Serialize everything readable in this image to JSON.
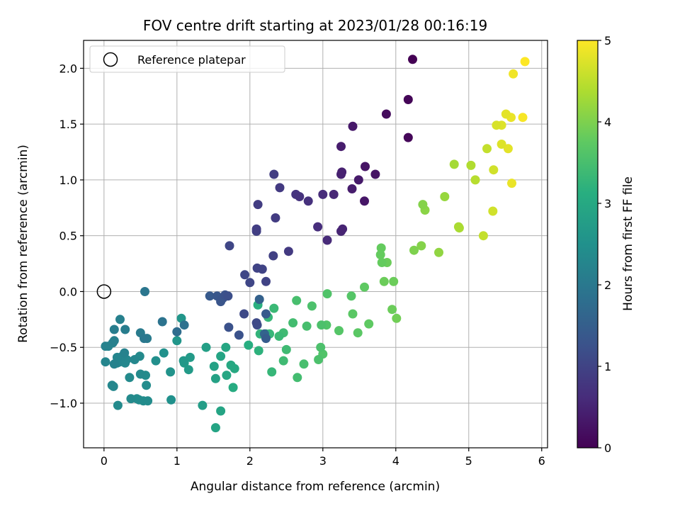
{
  "chart_data": {
    "type": "scatter",
    "title": "FOV centre drift starting at 2023/01/28 00:16:19",
    "xlabel": "Angular distance from reference (arcmin)",
    "ylabel": "Rotation from reference (arcmin)",
    "colorbar_label": "Hours from first FF file",
    "colormap": "viridis",
    "xlim": [
      -0.28,
      6.08
    ],
    "ylim": [
      -1.4,
      2.25
    ],
    "clim": [
      0,
      5
    ],
    "xticks": [
      0,
      1,
      2,
      3,
      4,
      5,
      6
    ],
    "yticks": [
      -1.0,
      -0.5,
      0.0,
      0.5,
      1.0,
      1.5,
      2.0
    ],
    "ytick_labels": [
      "−1.0",
      "−0.5",
      "0.0",
      "0.5",
      "1.0",
      "1.5",
      "2.0"
    ],
    "cticks": [
      0,
      1,
      2,
      3,
      4,
      5
    ],
    "grid": true,
    "legend": {
      "position": "top-left",
      "entries": [
        "Reference platepar"
      ]
    },
    "reference": {
      "x": 0,
      "y": 0
    },
    "series": [
      {
        "points": [
          [
            4.23,
            2.08,
            0.0
          ],
          [
            4.17,
            1.72,
            0.05
          ],
          [
            4.17,
            1.38,
            0.08
          ],
          [
            3.87,
            1.59,
            0.15
          ],
          [
            3.72,
            1.05,
            0.25
          ],
          [
            3.58,
            1.12,
            0.28
          ],
          [
            3.57,
            0.81,
            0.3
          ],
          [
            3.49,
            1.0,
            0.35
          ],
          [
            3.4,
            0.92,
            0.4
          ],
          [
            3.41,
            1.48,
            0.33
          ],
          [
            3.25,
            1.3,
            0.4
          ],
          [
            3.26,
            1.07,
            0.45
          ],
          [
            3.25,
            1.05,
            0.47
          ],
          [
            3.27,
            0.56,
            0.5
          ],
          [
            3.25,
            0.54,
            0.52
          ],
          [
            3.15,
            0.87,
            0.55
          ],
          [
            3.06,
            0.46,
            0.6
          ],
          [
            3.0,
            0.87,
            0.62
          ],
          [
            2.93,
            0.58,
            0.65
          ],
          [
            2.8,
            0.81,
            0.7
          ],
          [
            2.68,
            0.85,
            0.72
          ],
          [
            2.63,
            0.87,
            0.75
          ],
          [
            2.53,
            0.36,
            0.85
          ],
          [
            2.41,
            0.93,
            0.85
          ],
          [
            2.33,
            1.05,
            0.9
          ],
          [
            2.35,
            0.66,
            0.88
          ],
          [
            2.32,
            0.32,
            0.95
          ],
          [
            2.22,
            0.09,
            1.0
          ],
          [
            2.17,
            0.2,
            1.0
          ],
          [
            2.11,
            0.78,
            0.9
          ],
          [
            2.09,
            0.56,
            0.92
          ],
          [
            2.09,
            0.54,
            0.95
          ],
          [
            2.1,
            0.21,
            1.0
          ],
          [
            2.09,
            -0.28,
            1.1
          ],
          [
            2.1,
            -0.3,
            1.15
          ],
          [
            2.0,
            0.08,
            1.05
          ],
          [
            1.93,
            0.15,
            1.05
          ],
          [
            1.92,
            -0.2,
            1.1
          ],
          [
            1.85,
            -0.39,
            1.25
          ],
          [
            1.72,
            0.41,
            1.05
          ],
          [
            1.71,
            -0.32,
            1.25
          ],
          [
            1.7,
            -0.04,
            1.2
          ],
          [
            1.66,
            -0.03,
            1.25
          ],
          [
            1.63,
            -0.06,
            1.3
          ],
          [
            1.6,
            -0.09,
            1.3
          ],
          [
            1.55,
            -0.04,
            1.35
          ],
          [
            1.45,
            -0.04,
            1.4
          ],
          [
            2.22,
            -0.2,
            1.4
          ],
          [
            2.22,
            -0.42,
            1.45
          ],
          [
            2.13,
            -0.07,
            1.55
          ],
          [
            2.2,
            -0.38,
            1.6
          ],
          [
            1.0,
            -0.36,
            1.75
          ],
          [
            1.1,
            -0.3,
            1.85
          ],
          [
            0.8,
            -0.27,
            1.9
          ],
          [
            0.56,
            0.0,
            1.95
          ],
          [
            0.55,
            -0.42,
            2.0
          ],
          [
            0.59,
            -0.42,
            2.05
          ],
          [
            0.5,
            -0.37,
            2.05
          ],
          [
            0.14,
            -0.34,
            2.1
          ],
          [
            0.29,
            -0.34,
            2.1
          ],
          [
            0.22,
            -0.25,
            2.15
          ],
          [
            0.14,
            -0.44,
            2.15
          ],
          [
            0.12,
            -0.46,
            2.2
          ],
          [
            0.06,
            -0.49,
            2.2
          ],
          [
            0.02,
            -0.49,
            2.2
          ],
          [
            0.28,
            -0.55,
            2.2
          ],
          [
            0.25,
            -0.58,
            2.25
          ],
          [
            0.18,
            -0.59,
            2.25
          ],
          [
            0.02,
            -0.63,
            2.25
          ],
          [
            0.14,
            -0.65,
            2.2
          ],
          [
            0.18,
            -0.64,
            2.25
          ],
          [
            0.22,
            -0.63,
            2.3
          ],
          [
            0.29,
            -0.64,
            2.3
          ],
          [
            0.31,
            -0.61,
            2.3
          ],
          [
            0.42,
            -0.61,
            2.3
          ],
          [
            0.49,
            -0.58,
            2.35
          ],
          [
            0.5,
            -0.74,
            2.35
          ],
          [
            0.57,
            -0.75,
            2.4
          ],
          [
            0.58,
            -0.84,
            2.4
          ],
          [
            0.35,
            -0.77,
            2.35
          ],
          [
            0.11,
            -0.84,
            2.3
          ],
          [
            0.13,
            -0.85,
            2.3
          ],
          [
            0.19,
            -1.02,
            2.35
          ],
          [
            0.37,
            -0.96,
            2.35
          ],
          [
            0.45,
            -0.96,
            2.4
          ],
          [
            0.48,
            -0.97,
            2.4
          ],
          [
            0.54,
            -0.98,
            2.4
          ],
          [
            0.6,
            -0.98,
            2.4
          ],
          [
            0.71,
            -0.62,
            2.45
          ],
          [
            0.82,
            -0.55,
            2.5
          ],
          [
            0.91,
            -0.72,
            2.55
          ],
          [
            0.92,
            -0.97,
            2.5
          ],
          [
            1.0,
            -0.44,
            2.6
          ],
          [
            1.06,
            -0.24,
            2.6
          ],
          [
            1.09,
            -0.62,
            2.65
          ],
          [
            1.1,
            -0.64,
            2.7
          ],
          [
            1.16,
            -0.7,
            2.7
          ],
          [
            1.18,
            -0.59,
            2.7
          ],
          [
            1.35,
            -1.02,
            2.75
          ],
          [
            1.4,
            -0.5,
            2.8
          ],
          [
            1.51,
            -0.67,
            2.85
          ],
          [
            1.53,
            -0.78,
            2.85
          ],
          [
            1.53,
            -1.22,
            2.9
          ],
          [
            1.6,
            -0.58,
            2.9
          ],
          [
            1.6,
            -1.07,
            2.9
          ],
          [
            1.67,
            -0.5,
            2.95
          ],
          [
            1.68,
            -0.75,
            2.95
          ],
          [
            1.74,
            -0.66,
            3.0
          ],
          [
            1.79,
            -0.69,
            3.0
          ],
          [
            1.77,
            -0.86,
            3.05
          ],
          [
            1.98,
            -0.48,
            3.1
          ],
          [
            2.11,
            -0.12,
            3.15
          ],
          [
            2.12,
            -0.53,
            3.2
          ],
          [
            2.14,
            -0.38,
            3.25
          ],
          [
            2.22,
            -0.38,
            3.25
          ],
          [
            2.25,
            -0.23,
            3.3
          ],
          [
            2.27,
            -0.38,
            3.3
          ],
          [
            2.3,
            -0.72,
            3.3
          ],
          [
            2.33,
            -0.15,
            3.35
          ],
          [
            2.4,
            -0.4,
            3.35
          ],
          [
            2.46,
            -0.37,
            3.4
          ],
          [
            2.46,
            -0.62,
            3.4
          ],
          [
            2.5,
            -0.52,
            3.4
          ],
          [
            2.59,
            -0.28,
            3.45
          ],
          [
            2.64,
            -0.08,
            3.5
          ],
          [
            2.65,
            -0.77,
            3.45
          ],
          [
            2.74,
            -0.65,
            3.5
          ],
          [
            2.78,
            -0.31,
            3.5
          ],
          [
            2.85,
            -0.13,
            3.55
          ],
          [
            2.94,
            -0.61,
            3.55
          ],
          [
            2.97,
            -0.5,
            3.55
          ],
          [
            2.98,
            -0.3,
            3.55
          ],
          [
            3.0,
            -0.56,
            3.6
          ],
          [
            3.05,
            -0.3,
            3.6
          ],
          [
            3.06,
            -0.02,
            3.6
          ],
          [
            3.22,
            -0.35,
            3.65
          ],
          [
            3.39,
            -0.04,
            3.65
          ],
          [
            3.41,
            -0.2,
            3.7
          ],
          [
            3.48,
            -0.37,
            3.7
          ],
          [
            3.57,
            0.04,
            3.75
          ],
          [
            3.63,
            -0.29,
            3.75
          ],
          [
            3.79,
            0.33,
            3.8
          ],
          [
            3.8,
            0.39,
            3.8
          ],
          [
            3.81,
            0.26,
            3.8
          ],
          [
            3.84,
            0.09,
            3.85
          ],
          [
            3.88,
            0.26,
            3.85
          ],
          [
            3.95,
            -0.16,
            3.85
          ],
          [
            3.97,
            0.09,
            3.85
          ],
          [
            4.01,
            -0.24,
            3.9
          ],
          [
            4.25,
            0.37,
            4.0
          ],
          [
            4.35,
            0.41,
            4.05
          ],
          [
            4.37,
            0.78,
            4.05
          ],
          [
            4.4,
            0.73,
            4.1
          ],
          [
            4.59,
            0.35,
            4.15
          ],
          [
            4.67,
            0.85,
            4.2
          ],
          [
            4.8,
            1.14,
            4.3
          ],
          [
            4.86,
            0.58,
            4.35
          ],
          [
            4.87,
            0.57,
            4.35
          ],
          [
            5.03,
            1.13,
            4.4
          ],
          [
            5.09,
            1.0,
            4.45
          ],
          [
            5.2,
            0.5,
            4.55
          ],
          [
            5.25,
            1.28,
            4.55
          ],
          [
            5.33,
            0.72,
            4.65
          ],
          [
            5.34,
            1.09,
            4.65
          ],
          [
            5.38,
            1.49,
            4.7
          ],
          [
            5.45,
            1.49,
            4.75
          ],
          [
            5.45,
            1.32,
            4.75
          ],
          [
            5.51,
            1.59,
            4.8
          ],
          [
            5.54,
            1.28,
            4.8
          ],
          [
            5.58,
            1.56,
            4.85
          ],
          [
            5.59,
            0.97,
            4.85
          ],
          [
            5.61,
            1.95,
            4.9
          ],
          [
            5.74,
            1.56,
            4.95
          ],
          [
            5.77,
            2.06,
            5.0
          ]
        ]
      }
    ]
  }
}
